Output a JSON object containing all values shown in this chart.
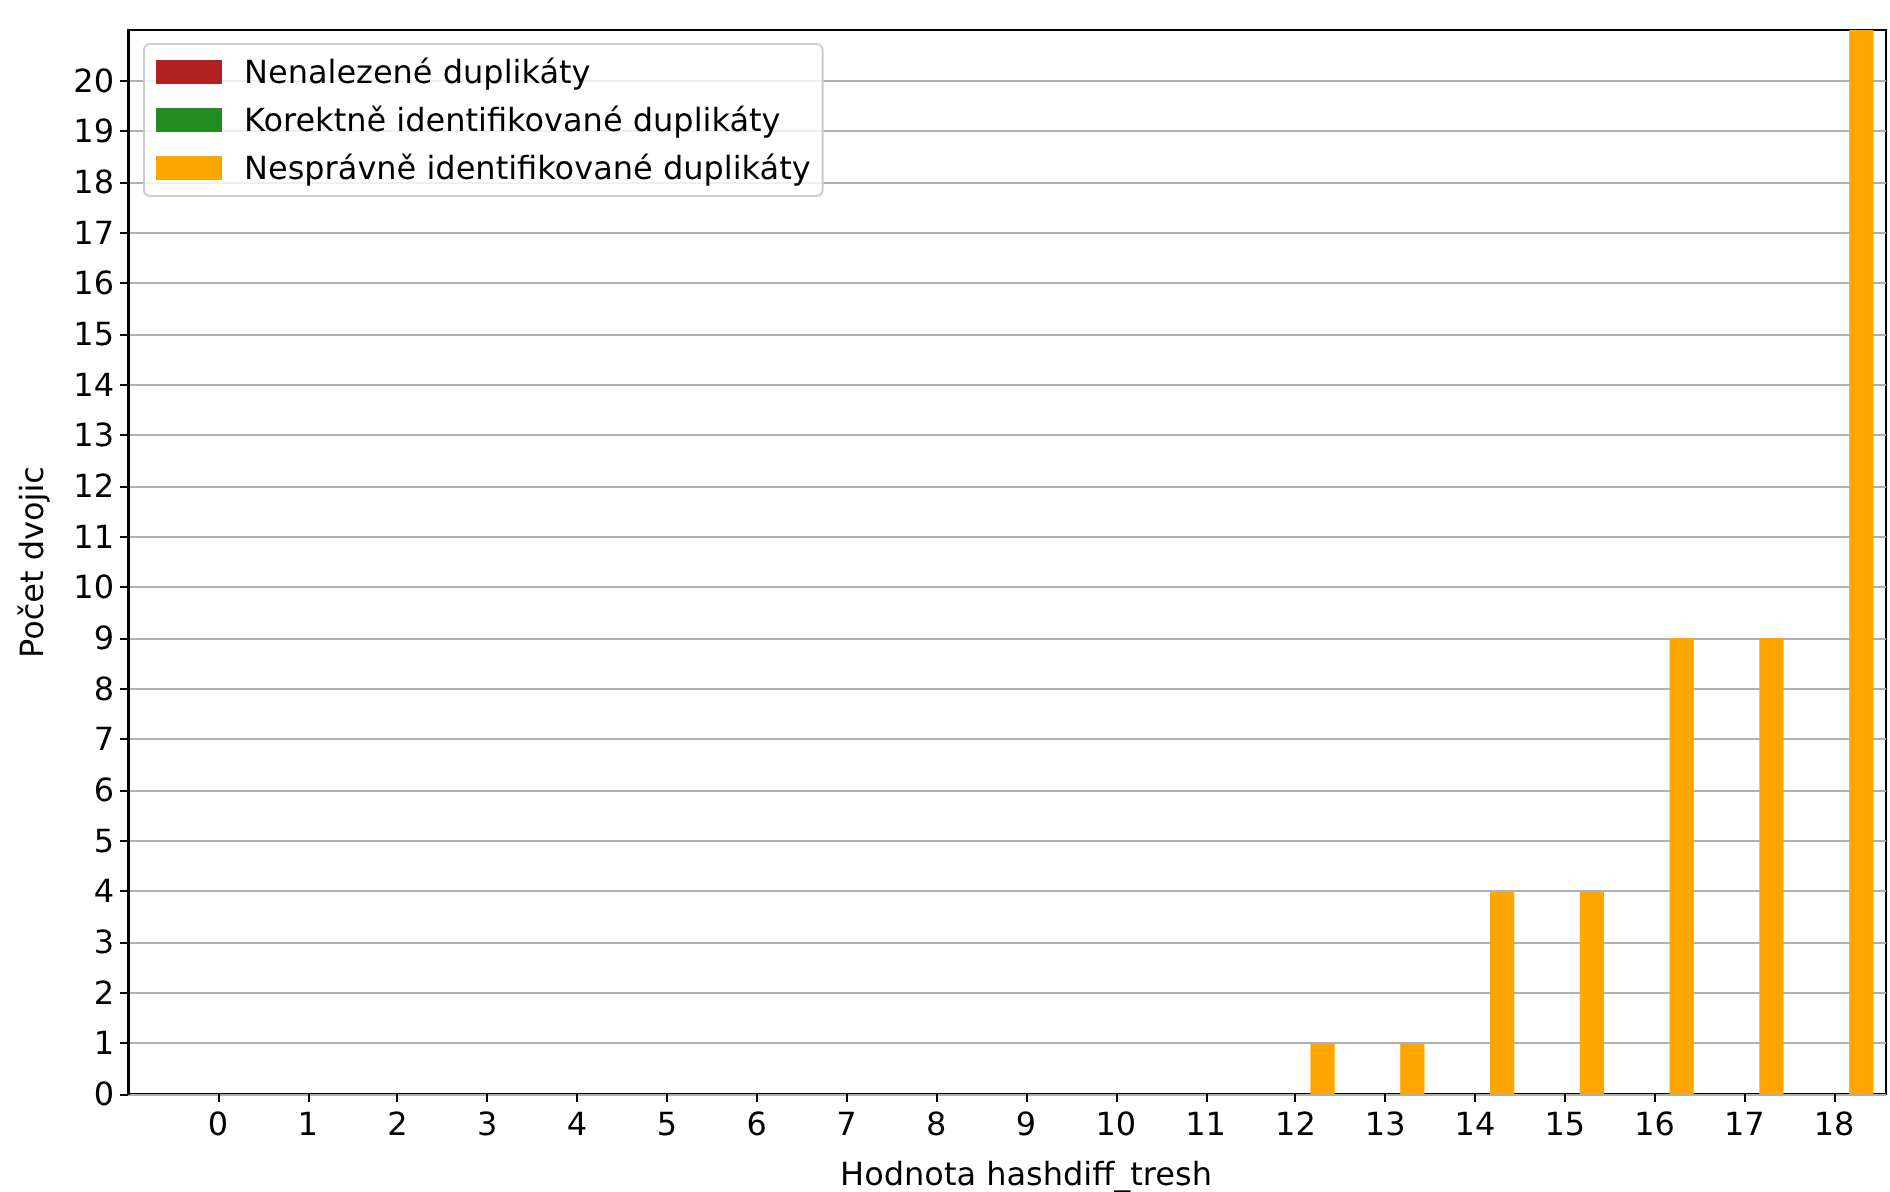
{
  "chart_data": {
    "type": "bar",
    "xlabel": "Hodnota hashdiff_tresh",
    "ylabel": "Počet dvojic",
    "categories": [
      "0",
      "1",
      "2",
      "3",
      "4",
      "5",
      "6",
      "7",
      "8",
      "9",
      "10",
      "11",
      "12",
      "13",
      "14",
      "15",
      "16",
      "17",
      "18"
    ],
    "series": [
      {
        "name": "Nenalezené duplikáty",
        "color": "#b22222",
        "values": [
          0,
          0,
          0,
          0,
          0,
          0,
          0,
          0,
          0,
          0,
          0,
          0,
          0,
          0,
          0,
          0,
          0,
          0,
          0
        ]
      },
      {
        "name": "Korektně identifikované duplikáty",
        "color": "#228b22",
        "values": [
          0,
          0,
          0,
          0,
          0,
          0,
          0,
          0,
          0,
          0,
          0,
          0,
          0,
          0,
          0,
          0,
          0,
          0,
          0
        ]
      },
      {
        "name": "Nesprávně identifikované duplikáty",
        "color": "#ffa500",
        "values": [
          0,
          0,
          0,
          0,
          0,
          0,
          0,
          0,
          0,
          0,
          0,
          0,
          1,
          1,
          4,
          4,
          9,
          9,
          21
        ]
      }
    ],
    "ylim": [
      0,
      21
    ],
    "yticks": [
      0,
      1,
      2,
      3,
      4,
      5,
      6,
      7,
      8,
      9,
      10,
      11,
      12,
      13,
      14,
      15,
      16,
      17,
      18,
      19,
      20
    ],
    "grid": "y",
    "legend": "top left"
  }
}
